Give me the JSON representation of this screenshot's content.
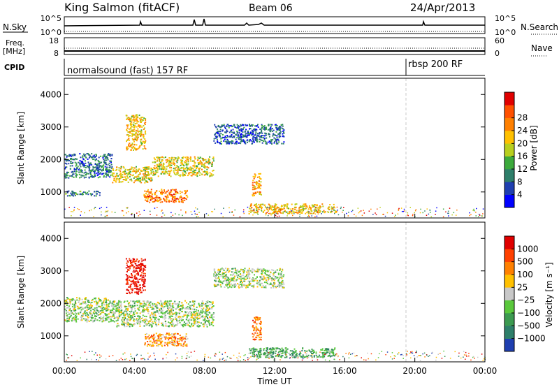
{
  "header": {
    "station": "King Salmon (fitACF)",
    "beam": "Beam 06",
    "date": "24/Apr/2013"
  },
  "top_panels": {
    "nsky_label": "N.Sky",
    "nsky_ticks": [
      "10^5",
      "10^0"
    ],
    "nsearch_label": "N.Search",
    "nsearch_ticks": [
      "10^5",
      "10^0"
    ],
    "freq_label_line1": "Freq.",
    "freq_label_line2": "[MHz]",
    "freq_ticks": [
      "18",
      "8"
    ],
    "nave_label": "Nave",
    "nave_ticks": [
      "60",
      "0"
    ],
    "cpid_label": "CPID",
    "cpid_segments": [
      "normalsound (fast) 157 RF",
      "rbsp 200 RF"
    ]
  },
  "chart_data": [
    {
      "type": "heatmap",
      "name": "power",
      "ylabel": "Slant Range [km]",
      "yticks": [
        "1000",
        "2000",
        "3000",
        "4000"
      ],
      "ylim": [
        200,
        4500
      ],
      "xlim_hours": [
        0,
        24
      ],
      "colorbar": {
        "label": "Power [dB]",
        "ticks": [
          "4",
          "8",
          "12",
          "16",
          "20",
          "24",
          "28"
        ],
        "colors": [
          "#0000ff",
          "#1f3fb0",
          "#2e7f6a",
          "#3caa3c",
          "#b8cf1e",
          "#ffc000",
          "#ff8000",
          "#ff5000",
          "#e00000"
        ]
      },
      "regions": [
        {
          "t0": 0.0,
          "t1": 2.7,
          "r0": 1450,
          "r1": 2200,
          "level": 0.25
        },
        {
          "t0": 2.7,
          "t1": 5.0,
          "r0": 1300,
          "r1": 1800,
          "level": 0.55
        },
        {
          "t0": 5.0,
          "t1": 8.5,
          "r0": 1500,
          "r1": 2100,
          "level": 0.55
        },
        {
          "t0": 8.5,
          "t1": 12.5,
          "r0": 2500,
          "r1": 3100,
          "level": 0.2
        },
        {
          "t0": 3.5,
          "t1": 4.6,
          "r0": 2300,
          "r1": 3400,
          "level": 0.6
        },
        {
          "t0": 4.5,
          "t1": 7.0,
          "r0": 700,
          "r1": 1100,
          "level": 0.75
        },
        {
          "t0": 10.5,
          "t1": 15.5,
          "r0": 350,
          "r1": 650,
          "level": 0.6
        },
        {
          "t0": 0.0,
          "t1": 2.0,
          "r0": 900,
          "r1": 1050,
          "level": 0.3
        },
        {
          "t0": 10.7,
          "t1": 11.2,
          "r0": 900,
          "r1": 1600,
          "level": 0.7
        }
      ]
    },
    {
      "type": "heatmap",
      "name": "velocity",
      "xlabel": "Time UT",
      "xticks": [
        "00:00",
        "04:00",
        "08:00",
        "12:00",
        "16:00",
        "20:00",
        "00:00"
      ],
      "ylabel": "Slant Range [km]",
      "yticks": [
        "1000",
        "2000",
        "3000",
        "4000"
      ],
      "ylim": [
        200,
        4500
      ],
      "xlim_hours": [
        0,
        24
      ],
      "colorbar": {
        "label": "Velocity [m s⁻¹]",
        "ticks": [
          "1000",
          "500",
          "100",
          "25",
          "−25",
          "−100",
          "−500",
          "−1000"
        ],
        "colors": [
          "#1f3fb0",
          "#2e7f6a",
          "#3c9a50",
          "#5ac83c",
          "#c8c8c8",
          "#ffc000",
          "#ff8000",
          "#ff4000",
          "#e00000"
        ]
      },
      "regions": [
        {
          "t0": 0.0,
          "t1": 2.7,
          "r0": 1450,
          "r1": 2200,
          "level": 0.45
        },
        {
          "t0": 2.7,
          "t1": 8.5,
          "r0": 1300,
          "r1": 2100,
          "level": 0.45
        },
        {
          "t0": 3.5,
          "t1": 4.6,
          "r0": 2300,
          "r1": 3400,
          "level": 0.95
        },
        {
          "t0": 4.5,
          "t1": 7.0,
          "r0": 700,
          "r1": 1100,
          "level": 0.7
        },
        {
          "t0": 10.5,
          "t1": 15.5,
          "r0": 350,
          "r1": 650,
          "level": 0.3
        },
        {
          "t0": 8.5,
          "t1": 12.5,
          "r0": 2500,
          "r1": 3100,
          "level": 0.45
        },
        {
          "t0": 10.7,
          "t1": 11.2,
          "r0": 900,
          "r1": 1600,
          "level": 0.75
        }
      ]
    }
  ]
}
